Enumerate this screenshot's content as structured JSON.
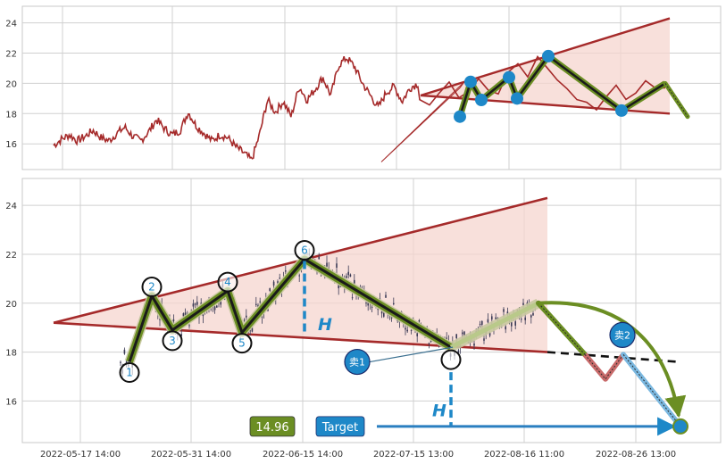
{
  "chart_data": [
    {
      "type": "line",
      "panel": "overview",
      "y_ticks": [
        16,
        18,
        20,
        22,
        24
      ],
      "ylim": [
        14.3,
        25.1
      ],
      "grid": true,
      "series": [
        {
          "values_sampled": [
            15.9,
            16.3,
            16.6,
            16.2,
            16.5,
            16.9,
            16.4,
            16.2,
            16.7,
            17.1,
            16.5,
            16.2,
            16.8,
            17.6,
            17.0,
            16.6,
            16.9,
            18.1,
            17.2,
            16.7,
            16.2,
            16.6,
            16.4,
            15.8,
            15.4,
            14.9,
            16.6,
            18.9,
            18.1,
            18.8,
            17.8,
            19.8,
            18.9,
            19.6,
            20.4,
            19.2,
            21.2,
            21.7,
            21.1,
            20.0,
            19.2,
            18.4,
            19.4,
            19.8,
            18.8,
            19.7,
            20.0
          ],
          "color": "#a52a2a"
        }
      ],
      "pattern_points": [
        {
          "label": "",
          "y": 17.8
        },
        {
          "label": "",
          "y": 20.1
        },
        {
          "label": "",
          "y": 18.9
        },
        {
          "label": "",
          "y": 20.4
        },
        {
          "label": "",
          "y": 19.0
        },
        {
          "label": "",
          "y": 21.8
        },
        {
          "label": "",
          "y": 18.2
        },
        {
          "label": "",
          "y": 20.0
        },
        {
          "label": "",
          "y": 17.8
        }
      ]
    },
    {
      "type": "candlestick",
      "panel": "detail",
      "x_tick_labels": [
        "2022-05-17 14:00",
        "2022-05-31 14:00",
        "2022-06-15 14:00",
        "2022-07-15 13:00",
        "2022-08-16 11:00",
        "2022-08-26 13:00"
      ],
      "y_ticks": [
        16,
        18,
        20,
        22,
        24
      ],
      "ylim": [
        14.3,
        25.1
      ],
      "grid": true,
      "wave_points": [
        {
          "label": "1",
          "y": 17.6
        },
        {
          "label": "2",
          "y": 20.3
        },
        {
          "label": "3",
          "y": 18.9
        },
        {
          "label": "4",
          "y": 20.5
        },
        {
          "label": "5",
          "y": 18.8
        },
        {
          "label": "6",
          "y": 21.8
        },
        {
          "label": "",
          "y": 18.2
        },
        {
          "label": "",
          "y": 20.0
        }
      ],
      "triangle": {
        "upper_line": [
          19.2,
          24.3
        ],
        "lower_line": [
          19.2,
          18.0
        ]
      },
      "annotations": {
        "height_label": "H",
        "sell1_label": "卖1",
        "sell2_label": "卖2",
        "target_label": "Target",
        "target_value": "14.96",
        "target_price": 14.96
      }
    }
  ],
  "colors": {
    "price_line": "#a52a2a",
    "triangle_edge": "#a52a2a",
    "triangle_fill": "#f6d5cf",
    "wave_dark": "#1a1a1a",
    "wave_green": "#6b8e23",
    "marker_blue": "#1e88c8",
    "target_green": "#6b8e23",
    "target_blue": "#1e88c8"
  }
}
